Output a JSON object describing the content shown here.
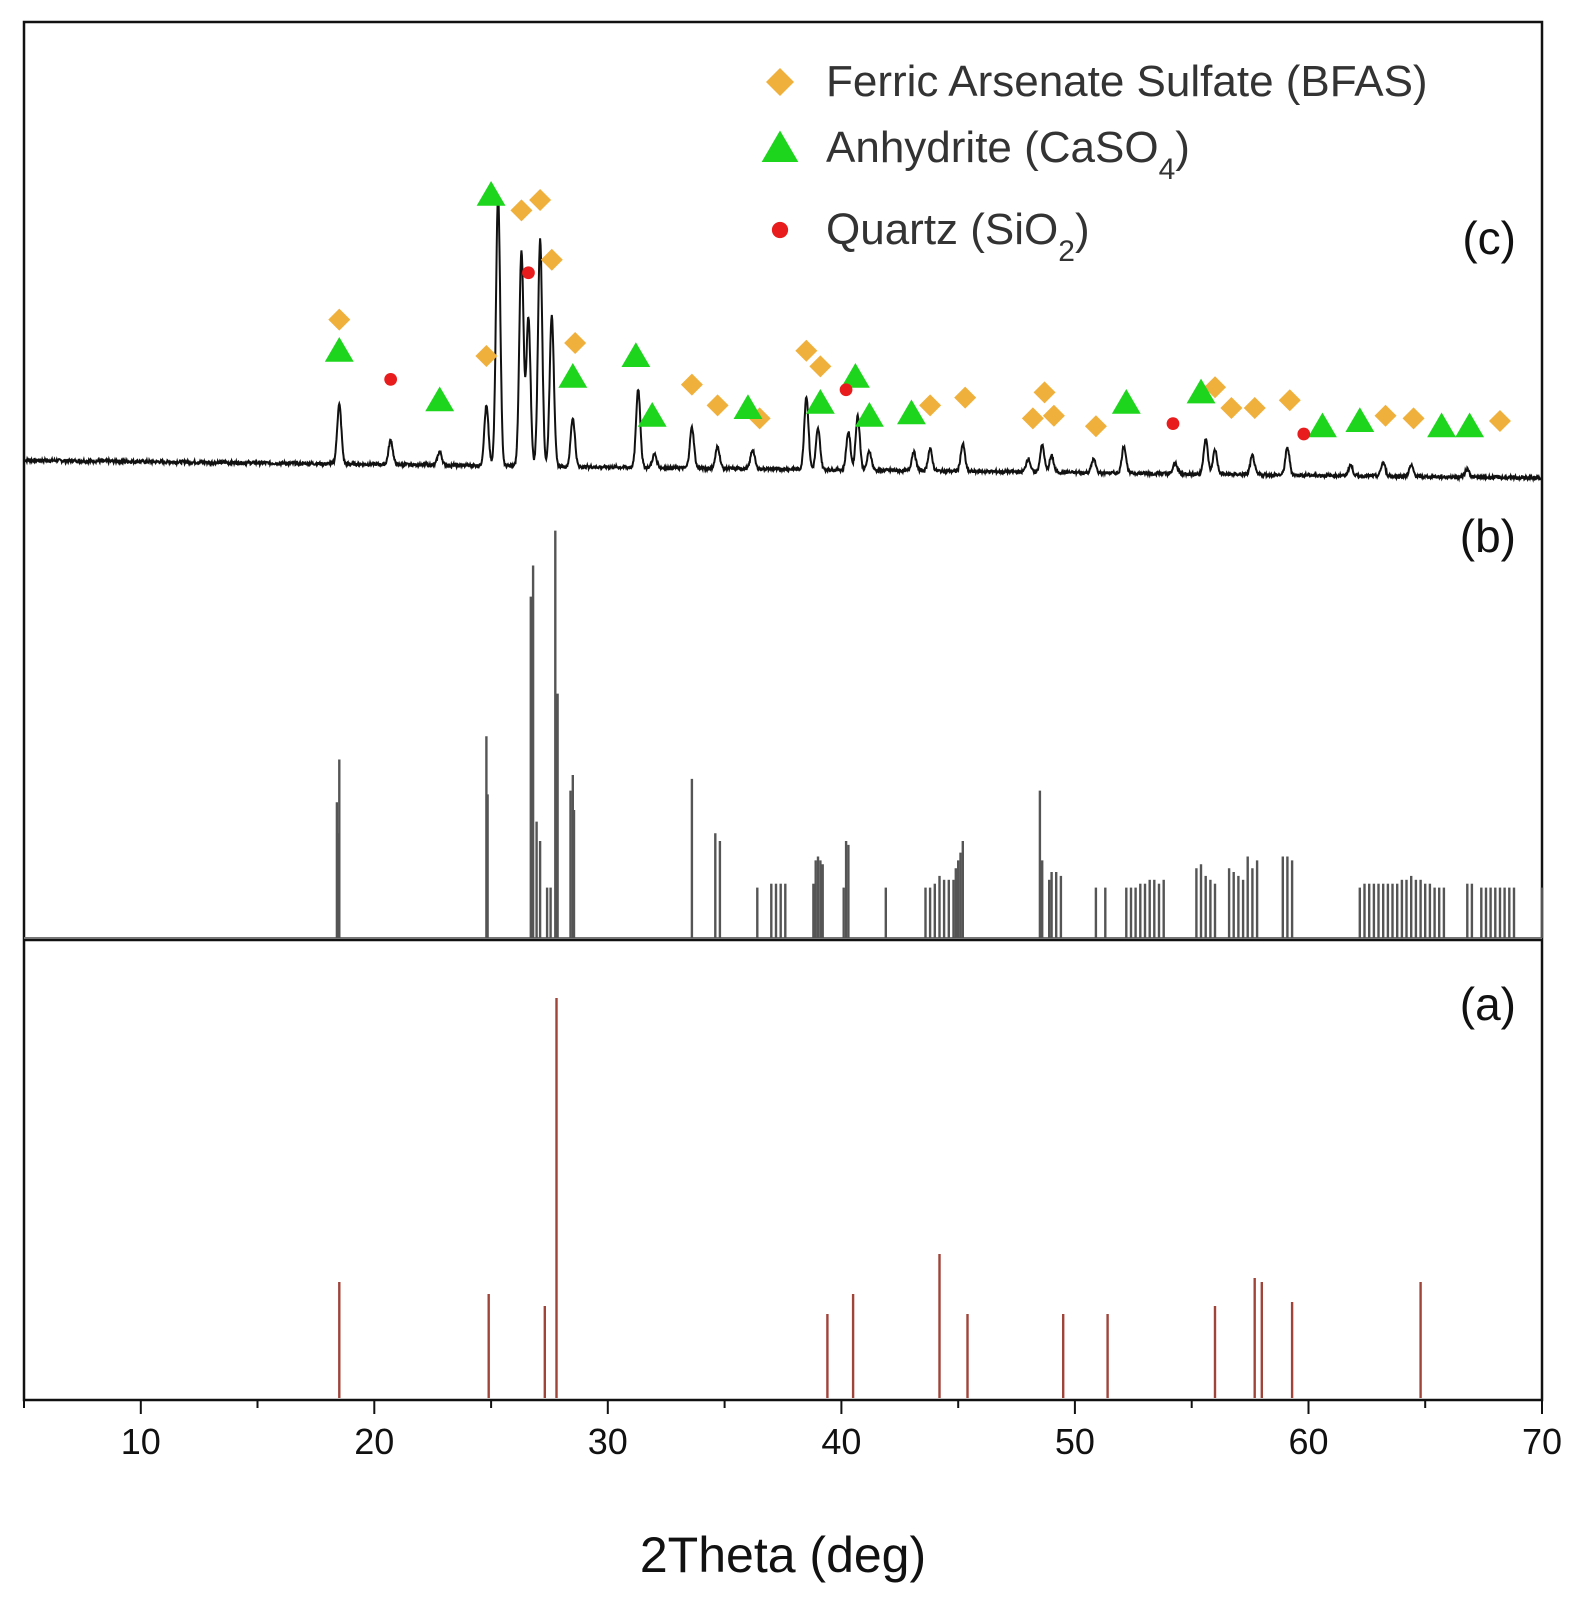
{
  "chart_data": {
    "type": "line",
    "xlabel": "2Theta (deg)",
    "xlim": [
      5,
      70
    ],
    "x_ticks": [
      10,
      20,
      30,
      40,
      50,
      60,
      70
    ],
    "grid": false,
    "legend_position": "top-right",
    "legend": [
      {
        "key": "bfas",
        "pre": "Ferric Arsenate Sulfate (BFAS)",
        "sub": "",
        "post": "",
        "marker": "diamond",
        "color": "#f0b03c"
      },
      {
        "key": "anhydrite",
        "pre": "Anhydrite (CaSO",
        "sub": "4",
        "post": ")",
        "marker": "triangle",
        "color": "#1ed51e"
      },
      {
        "key": "quartz",
        "pre": "Quartz (SiO",
        "sub": "2",
        "post": ")",
        "marker": "circle",
        "color": "#e81c1c"
      }
    ],
    "panels": {
      "c": {
        "label": "(c)",
        "baseline_start": 0.12,
        "baseline_end": 0.0,
        "peaks": [
          [
            18.5,
            0.22
          ],
          [
            20.7,
            0.09
          ],
          [
            22.8,
            0.05
          ],
          [
            24.8,
            0.22
          ],
          [
            25.3,
            1.0
          ],
          [
            26.3,
            0.8
          ],
          [
            26.6,
            0.55
          ],
          [
            27.1,
            0.84
          ],
          [
            27.6,
            0.56
          ],
          [
            28.5,
            0.18
          ],
          [
            31.3,
            0.29
          ],
          [
            32.0,
            0.05
          ],
          [
            33.6,
            0.15
          ],
          [
            34.7,
            0.08
          ],
          [
            36.2,
            0.07
          ],
          [
            38.5,
            0.27
          ],
          [
            39.0,
            0.15
          ],
          [
            40.3,
            0.14
          ],
          [
            40.7,
            0.2
          ],
          [
            41.2,
            0.07
          ],
          [
            43.1,
            0.07
          ],
          [
            43.8,
            0.08
          ],
          [
            45.2,
            0.1
          ],
          [
            48.0,
            0.05
          ],
          [
            48.6,
            0.1
          ],
          [
            49.0,
            0.06
          ],
          [
            50.8,
            0.05
          ],
          [
            52.1,
            0.1
          ],
          [
            54.3,
            0.04
          ],
          [
            55.6,
            0.13
          ],
          [
            56.0,
            0.09
          ],
          [
            57.6,
            0.07
          ],
          [
            59.1,
            0.1
          ],
          [
            61.8,
            0.04
          ],
          [
            63.2,
            0.05
          ],
          [
            64.4,
            0.04
          ],
          [
            66.8,
            0.03
          ]
        ],
        "markers": {
          "bfas": [
            [
              18.5,
              0.54
            ],
            [
              24.8,
              0.4
            ],
            [
              26.3,
              0.96
            ],
            [
              27.1,
              1.0
            ],
            [
              27.6,
              0.77
            ],
            [
              28.6,
              0.45
            ],
            [
              33.6,
              0.29
            ],
            [
              34.7,
              0.21
            ],
            [
              36.5,
              0.16
            ],
            [
              38.5,
              0.42
            ],
            [
              39.1,
              0.36
            ],
            [
              43.8,
              0.21
            ],
            [
              45.3,
              0.24
            ],
            [
              48.2,
              0.16
            ],
            [
              48.7,
              0.26
            ],
            [
              49.1,
              0.17
            ],
            [
              50.9,
              0.13
            ],
            [
              56.0,
              0.28
            ],
            [
              56.7,
              0.2
            ],
            [
              57.7,
              0.2
            ],
            [
              59.2,
              0.23
            ],
            [
              63.3,
              0.17
            ],
            [
              64.5,
              0.16
            ],
            [
              68.2,
              0.15
            ]
          ],
          "anhydrite": [
            [
              18.5,
              0.42
            ],
            [
              22.8,
              0.23
            ],
            [
              25.0,
              1.02
            ],
            [
              28.5,
              0.32
            ],
            [
              31.2,
              0.4
            ],
            [
              31.9,
              0.17
            ],
            [
              36.0,
              0.2
            ],
            [
              39.1,
              0.22
            ],
            [
              40.6,
              0.32
            ],
            [
              41.2,
              0.17
            ],
            [
              43.0,
              0.18
            ],
            [
              52.2,
              0.22
            ],
            [
              55.4,
              0.26
            ],
            [
              60.6,
              0.13
            ],
            [
              62.2,
              0.15
            ],
            [
              65.7,
              0.13
            ],
            [
              66.9,
              0.13
            ]
          ],
          "quartz": [
            [
              20.7,
              0.31
            ],
            [
              26.6,
              0.72
            ],
            [
              40.2,
              0.27
            ],
            [
              54.2,
              0.14
            ],
            [
              59.8,
              0.1
            ]
          ]
        }
      },
      "b": {
        "label": "(b)",
        "lines": [
          [
            18.4,
            0.35
          ],
          [
            18.5,
            0.46
          ],
          [
            18.45,
            0.27
          ],
          [
            24.8,
            0.52
          ],
          [
            24.85,
            0.37
          ],
          [
            26.7,
            0.88
          ],
          [
            26.8,
            0.96
          ],
          [
            26.95,
            0.3
          ],
          [
            27.1,
            0.25
          ],
          [
            27.4,
            0.13
          ],
          [
            27.55,
            0.13
          ],
          [
            27.75,
            1.05
          ],
          [
            27.85,
            0.63
          ],
          [
            28.4,
            0.38
          ],
          [
            28.5,
            0.42
          ],
          [
            28.55,
            0.33
          ],
          [
            33.6,
            0.41
          ],
          [
            34.6,
            0.27
          ],
          [
            34.8,
            0.25
          ],
          [
            36.4,
            0.13
          ],
          [
            37.0,
            0.14
          ],
          [
            37.2,
            0.14
          ],
          [
            37.4,
            0.14
          ],
          [
            37.6,
            0.14
          ],
          [
            38.8,
            0.14
          ],
          [
            38.9,
            0.2
          ],
          [
            39.0,
            0.21
          ],
          [
            39.1,
            0.2
          ],
          [
            39.2,
            0.19
          ],
          [
            40.1,
            0.13
          ],
          [
            40.2,
            0.25
          ],
          [
            40.3,
            0.24
          ],
          [
            41.9,
            0.13
          ],
          [
            43.6,
            0.13
          ],
          [
            43.8,
            0.13
          ],
          [
            44.0,
            0.14
          ],
          [
            44.2,
            0.16
          ],
          [
            44.4,
            0.15
          ],
          [
            44.6,
            0.15
          ],
          [
            44.8,
            0.15
          ],
          [
            44.9,
            0.18
          ],
          [
            45.0,
            0.2
          ],
          [
            45.1,
            0.22
          ],
          [
            45.2,
            0.25
          ],
          [
            48.5,
            0.38
          ],
          [
            48.6,
            0.2
          ],
          [
            48.9,
            0.15
          ],
          [
            49.0,
            0.17
          ],
          [
            49.2,
            0.17
          ],
          [
            49.4,
            0.16
          ],
          [
            50.9,
            0.13
          ],
          [
            51.3,
            0.13
          ],
          [
            52.2,
            0.13
          ],
          [
            52.4,
            0.13
          ],
          [
            52.6,
            0.13
          ],
          [
            52.8,
            0.14
          ],
          [
            53.0,
            0.14
          ],
          [
            53.2,
            0.15
          ],
          [
            53.4,
            0.15
          ],
          [
            53.6,
            0.14
          ],
          [
            53.8,
            0.15
          ],
          [
            55.2,
            0.18
          ],
          [
            55.4,
            0.19
          ],
          [
            55.6,
            0.16
          ],
          [
            55.8,
            0.15
          ],
          [
            56.0,
            0.14
          ],
          [
            56.6,
            0.18
          ],
          [
            56.8,
            0.17
          ],
          [
            57.0,
            0.16
          ],
          [
            57.2,
            0.15
          ],
          [
            57.4,
            0.21
          ],
          [
            57.6,
            0.18
          ],
          [
            57.8,
            0.2
          ],
          [
            58.9,
            0.21
          ],
          [
            59.1,
            0.21
          ],
          [
            59.3,
            0.2
          ],
          [
            62.2,
            0.13
          ],
          [
            62.4,
            0.14
          ],
          [
            62.6,
            0.14
          ],
          [
            62.8,
            0.14
          ],
          [
            63.0,
            0.14
          ],
          [
            63.2,
            0.14
          ],
          [
            63.4,
            0.14
          ],
          [
            63.6,
            0.14
          ],
          [
            63.8,
            0.14
          ],
          [
            64.0,
            0.15
          ],
          [
            64.2,
            0.15
          ],
          [
            64.4,
            0.16
          ],
          [
            64.6,
            0.15
          ],
          [
            64.8,
            0.15
          ],
          [
            65.0,
            0.14
          ],
          [
            65.2,
            0.14
          ],
          [
            65.4,
            0.13
          ],
          [
            65.6,
            0.13
          ],
          [
            65.8,
            0.13
          ],
          [
            66.8,
            0.14
          ],
          [
            67.0,
            0.14
          ],
          [
            67.4,
            0.13
          ],
          [
            67.6,
            0.13
          ],
          [
            67.8,
            0.13
          ],
          [
            68.0,
            0.13
          ],
          [
            68.2,
            0.13
          ],
          [
            68.4,
            0.13
          ],
          [
            68.6,
            0.13
          ],
          [
            68.8,
            0.13
          ],
          [
            70.0,
            0.13
          ]
        ]
      },
      "a": {
        "label": "(a)",
        "lines": [
          [
            18.5,
            0.29
          ],
          [
            24.9,
            0.26
          ],
          [
            27.3,
            0.23
          ],
          [
            27.8,
            1.0
          ],
          [
            39.4,
            0.21
          ],
          [
            40.5,
            0.26
          ],
          [
            44.2,
            0.36
          ],
          [
            45.4,
            0.21
          ],
          [
            49.5,
            0.21
          ],
          [
            51.4,
            0.21
          ],
          [
            56.0,
            0.23
          ],
          [
            57.7,
            0.3
          ],
          [
            58.0,
            0.29
          ],
          [
            59.3,
            0.24
          ],
          [
            64.8,
            0.29
          ]
        ]
      }
    }
  }
}
